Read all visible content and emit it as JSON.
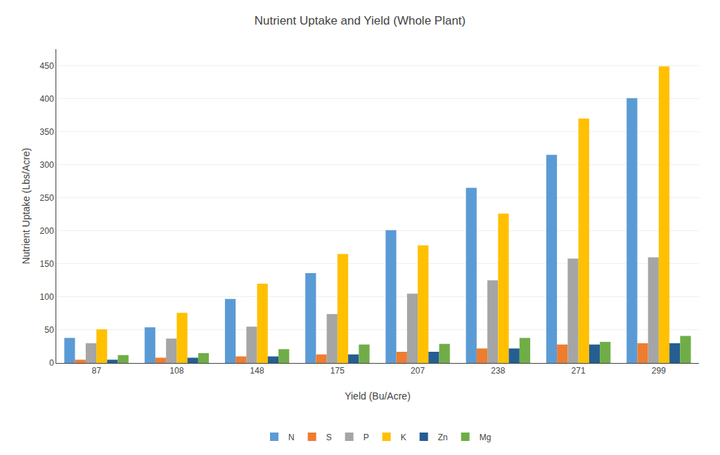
{
  "chart_data": {
    "type": "bar",
    "title": "Nutrient Uptake and Yield (Whole Plant)",
    "xlabel": "Yield (Bu/Acre)",
    "ylabel": "Nutrient Uptake (Lbs/Acre)",
    "categories": [
      87,
      108,
      148,
      175,
      207,
      238,
      271,
      299
    ],
    "series": [
      {
        "name": "N",
        "color": "#5B9BD5",
        "values": [
          38,
          54,
          97,
          136,
          201,
          265,
          315,
          401
        ]
      },
      {
        "name": "S",
        "color": "#ED7D31",
        "values": [
          5,
          8,
          10,
          13,
          17,
          22,
          28,
          30
        ]
      },
      {
        "name": "P",
        "color": "#A5A5A5",
        "values": [
          30,
          37,
          55,
          74,
          105,
          125,
          158,
          160
        ]
      },
      {
        "name": "K",
        "color": "#FFC000",
        "values": [
          51,
          76,
          120,
          165,
          178,
          226,
          370,
          449
        ]
      },
      {
        "name": "Zn",
        "color": "#255E91",
        "values": [
          5,
          8,
          10,
          13,
          17,
          22,
          28,
          30
        ]
      },
      {
        "name": "Mg",
        "color": "#70AD47",
        "values": [
          12,
          15,
          21,
          28,
          29,
          38,
          32,
          41
        ]
      }
    ],
    "ylim": [
      0,
      475
    ],
    "yticks": [
      0,
      50,
      100,
      150,
      200,
      250,
      300,
      350,
      400,
      450
    ],
    "grid": true,
    "legend": "bottom"
  }
}
